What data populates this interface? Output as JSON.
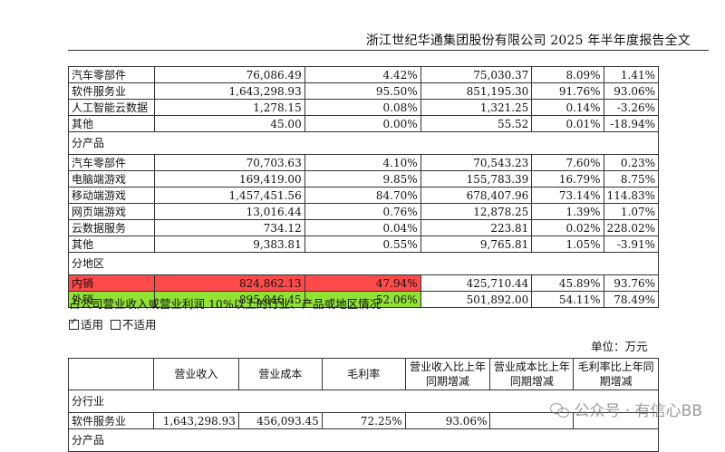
{
  "header": {
    "title": "浙江世纪华通集团股份有限公司 2025 年半年度报告全文"
  },
  "table1": {
    "rows_industry": [
      [
        "汽车零部件",
        "76,086.49",
        "4.42%",
        "75,030.37",
        "8.09%",
        "1.41%"
      ],
      [
        "软件服务业",
        "1,643,298.93",
        "95.50%",
        "851,195.30",
        "91.76%",
        "93.06%"
      ],
      [
        "人工智能云数据",
        "1,278.15",
        "0.08%",
        "1,321.25",
        "0.14%",
        "-3.26%"
      ],
      [
        "其他",
        "45.00",
        "0.00%",
        "55.52",
        "0.01%",
        "-18.94%"
      ]
    ],
    "section_product": "分产品",
    "rows_product": [
      [
        "汽车零部件",
        "70,703.63",
        "4.10%",
        "70,543.23",
        "7.60%",
        "0.23%"
      ],
      [
        "电脑端游戏",
        "169,419.00",
        "9.85%",
        "155,783.39",
        "16.79%",
        "8.75%"
      ],
      [
        "移动端游戏",
        "1,457,451.56",
        "84.70%",
        "678,407.96",
        "73.14%",
        "114.83%"
      ],
      [
        "网页端游戏",
        "13,016.44",
        "0.76%",
        "12,878.25",
        "1.39%",
        "1.07%"
      ],
      [
        "云数据服务",
        "734.12",
        "0.04%",
        "223.81",
        "0.02%",
        "228.02%"
      ],
      [
        "其他",
        "9,383.81",
        "0.55%",
        "9,765.81",
        "1.05%",
        "-3.91%"
      ]
    ],
    "section_region": "分地区",
    "rows_region": [
      [
        "内销",
        "824,862.13",
        "47.94%",
        "425,710.44",
        "45.89%",
        "93.76%"
      ],
      [
        "外销",
        "895,846.45",
        "52.06%",
        "501,892.00",
        "54.11%",
        "78.49%"
      ]
    ]
  },
  "note": "占公司营业收入或营业利润 10%以上的行业、产品或地区情况",
  "apply": {
    "yes": "适用",
    "no": "不适用"
  },
  "unit": "单位：万元",
  "table2": {
    "headers": [
      "",
      "营业收入",
      "营业成本",
      "毛利率",
      "营业收入比上年同期增减",
      "营业成本比上年同期增减",
      "毛利率比上年同期增减"
    ],
    "section_industry": "分行业",
    "row1": [
      "软件服务业",
      "1,643,298.93",
      "456,093.45",
      "72.25%",
      "93.06%",
      "",
      ""
    ],
    "section_product": "分产品"
  },
  "watermark": "公众号 · 有信心BB",
  "colors": {
    "highlight_red": "#ff4a4a",
    "highlight_green": "#92e233"
  }
}
